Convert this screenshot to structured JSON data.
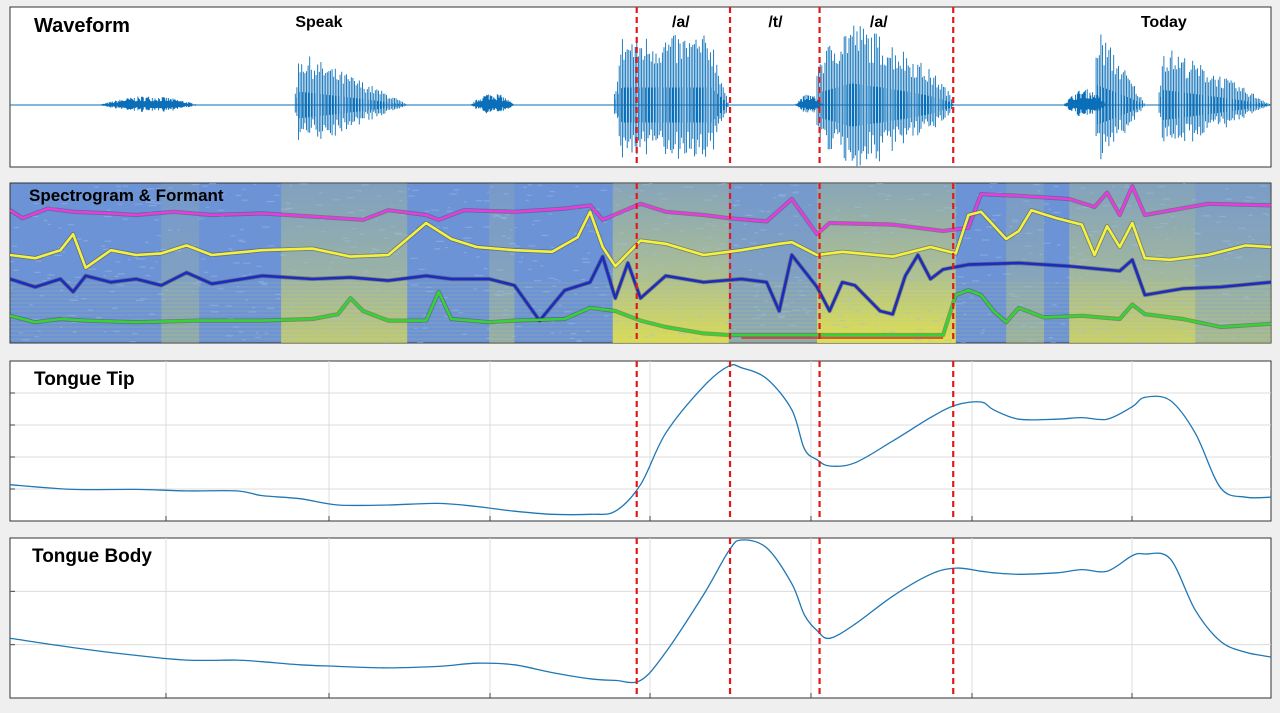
{
  "figure": {
    "waveform_title": "Waveform",
    "spectrogram_title": "Spectrogram & Formant",
    "tongue_tip_title": "Tongue Tip",
    "tongue_body_title": "Tongue Body"
  },
  "chart_data": [
    {
      "type": "line",
      "title": "Waveform",
      "word_labels": [
        {
          "text": "Speak",
          "t": 0.245
        },
        {
          "text": "/a/",
          "t": 0.532
        },
        {
          "text": "/t/",
          "t": 0.607
        },
        {
          "text": "/a/",
          "t": 0.689
        },
        {
          "text": "Today",
          "t": 0.915
        }
      ],
      "segment_boundaries": [
        0.497,
        0.571,
        0.642,
        0.748
      ],
      "bursts": [
        {
          "t0": 0.07,
          "t1": 0.15,
          "amp": 0.1,
          "shape": "noise"
        },
        {
          "t0": 0.225,
          "t1": 0.315,
          "amp": 0.62,
          "shape": "decay"
        },
        {
          "t0": 0.365,
          "t1": 0.4,
          "amp": 0.14,
          "shape": "noise"
        },
        {
          "t0": 0.478,
          "t1": 0.57,
          "amp": 0.78,
          "shape": "plateau"
        },
        {
          "t0": 0.622,
          "t1": 0.645,
          "amp": 0.12,
          "shape": "noise"
        },
        {
          "t0": 0.64,
          "t1": 0.748,
          "amp": 0.96,
          "shape": "rise-decay"
        },
        {
          "t0": 0.835,
          "t1": 0.87,
          "amp": 0.18,
          "shape": "noise"
        },
        {
          "t0": 0.86,
          "t1": 0.9,
          "amp": 0.92,
          "shape": "decay"
        },
        {
          "t0": 0.91,
          "t1": 1.0,
          "amp": 0.7,
          "shape": "decay"
        }
      ],
      "colors": {
        "signal": "#0a6fb8",
        "boundary": "#e01a1a"
      }
    },
    {
      "type": "line",
      "title": "Spectrogram & Formant",
      "y_range": [
        0,
        1
      ],
      "segment_boundaries": [
        0.497,
        0.571,
        0.642,
        0.748
      ],
      "series": [
        {
          "color": "#e83ce0",
          "t": [
            0,
            0.01,
            0.03,
            0.05,
            0.08,
            0.1,
            0.13,
            0.16,
            0.2,
            0.24,
            0.28,
            0.3,
            0.33,
            0.34,
            0.36,
            0.4,
            0.44,
            0.46,
            0.47,
            0.5,
            0.52,
            0.55,
            0.57,
            0.6,
            0.62,
            0.64,
            0.65,
            0.7,
            0.74,
            0.76,
            0.77,
            0.8,
            0.84,
            0.86,
            0.87,
            0.88,
            0.89,
            0.9,
            0.95,
            1.0
          ],
          "y": [
            0.83,
            0.78,
            0.84,
            0.82,
            0.81,
            0.8,
            0.82,
            0.8,
            0.81,
            0.79,
            0.77,
            0.83,
            0.8,
            0.77,
            0.83,
            0.82,
            0.84,
            0.86,
            0.77,
            0.87,
            0.82,
            0.8,
            0.78,
            0.76,
            0.9,
            0.68,
            0.75,
            0.74,
            0.7,
            0.72,
            0.93,
            0.92,
            0.9,
            0.85,
            0.94,
            0.8,
            0.98,
            0.8,
            0.87,
            0.86
          ]
        },
        {
          "color": "#f6f23c",
          "t": [
            0,
            0.02,
            0.04,
            0.05,
            0.06,
            0.08,
            0.1,
            0.12,
            0.14,
            0.16,
            0.2,
            0.24,
            0.27,
            0.3,
            0.33,
            0.35,
            0.37,
            0.4,
            0.43,
            0.45,
            0.46,
            0.47,
            0.48,
            0.5,
            0.52,
            0.55,
            0.58,
            0.61,
            0.62,
            0.64,
            0.66,
            0.7,
            0.73,
            0.75,
            0.76,
            0.77,
            0.79,
            0.8,
            0.81,
            0.83,
            0.85,
            0.86,
            0.87,
            0.88,
            0.89,
            0.9,
            0.92,
            0.95,
            0.98,
            1.0
          ],
          "y": [
            0.55,
            0.53,
            0.58,
            0.68,
            0.47,
            0.58,
            0.55,
            0.56,
            0.61,
            0.55,
            0.58,
            0.59,
            0.54,
            0.55,
            0.75,
            0.65,
            0.6,
            0.58,
            0.57,
            0.66,
            0.82,
            0.6,
            0.48,
            0.64,
            0.62,
            0.55,
            0.58,
            0.62,
            0.63,
            0.55,
            0.57,
            0.54,
            0.6,
            0.56,
            0.8,
            0.82,
            0.65,
            0.7,
            0.83,
            0.78,
            0.74,
            0.55,
            0.73,
            0.6,
            0.75,
            0.53,
            0.52,
            0.55,
            0.61,
            0.6
          ]
        },
        {
          "color": "#1d2bbf",
          "t": [
            0,
            0.02,
            0.04,
            0.05,
            0.06,
            0.08,
            0.1,
            0.12,
            0.14,
            0.16,
            0.2,
            0.24,
            0.27,
            0.3,
            0.33,
            0.35,
            0.38,
            0.4,
            0.42,
            0.44,
            0.46,
            0.47,
            0.48,
            0.49,
            0.5,
            0.52,
            0.55,
            0.58,
            0.6,
            0.61,
            0.62,
            0.64,
            0.65,
            0.66,
            0.67,
            0.69,
            0.7,
            0.71,
            0.72,
            0.73,
            0.74,
            0.76,
            0.8,
            0.84,
            0.88,
            0.89,
            0.9,
            0.93,
            0.96,
            1.0
          ],
          "y": [
            0.4,
            0.35,
            0.4,
            0.32,
            0.42,
            0.38,
            0.4,
            0.36,
            0.44,
            0.37,
            0.42,
            0.4,
            0.41,
            0.39,
            0.42,
            0.4,
            0.4,
            0.36,
            0.14,
            0.33,
            0.38,
            0.54,
            0.28,
            0.5,
            0.28,
            0.42,
            0.38,
            0.4,
            0.38,
            0.2,
            0.55,
            0.35,
            0.2,
            0.38,
            0.36,
            0.2,
            0.18,
            0.42,
            0.55,
            0.4,
            0.46,
            0.49,
            0.5,
            0.48,
            0.45,
            0.52,
            0.3,
            0.34,
            0.35,
            0.38
          ]
        },
        {
          "color": "#35d335",
          "t": [
            0,
            0.02,
            0.04,
            0.06,
            0.1,
            0.15,
            0.2,
            0.24,
            0.26,
            0.27,
            0.28,
            0.3,
            0.33,
            0.34,
            0.35,
            0.38,
            0.4,
            0.44,
            0.46,
            0.48,
            0.5,
            0.52,
            0.55,
            0.57,
            0.6,
            0.64,
            0.7,
            0.74,
            0.75,
            0.76,
            0.77,
            0.78,
            0.79,
            0.8,
            0.82,
            0.85,
            0.88,
            0.89,
            0.9,
            0.93,
            0.96,
            1.0
          ],
          "y": [
            0.17,
            0.13,
            0.15,
            0.14,
            0.13,
            0.14,
            0.14,
            0.15,
            0.18,
            0.28,
            0.2,
            0.14,
            0.14,
            0.32,
            0.15,
            0.13,
            0.14,
            0.15,
            0.22,
            0.2,
            0.14,
            0.1,
            0.06,
            0.05,
            0.05,
            0.05,
            0.05,
            0.05,
            0.3,
            0.33,
            0.3,
            0.2,
            0.13,
            0.22,
            0.16,
            0.17,
            0.15,
            0.24,
            0.18,
            0.15,
            0.1,
            0.12
          ]
        }
      ]
    },
    {
      "type": "line",
      "title": "Tongue Tip",
      "y_range": [
        0,
        1
      ],
      "segment_boundaries": [
        0.497,
        0.571,
        0.642,
        0.748
      ],
      "x": [
        0,
        0.05,
        0.1,
        0.14,
        0.18,
        0.2,
        0.23,
        0.26,
        0.3,
        0.34,
        0.37,
        0.4,
        0.43,
        0.46,
        0.48,
        0.5,
        0.52,
        0.55,
        0.57,
        0.58,
        0.6,
        0.62,
        0.63,
        0.64,
        0.65,
        0.67,
        0.7,
        0.73,
        0.75,
        0.77,
        0.78,
        0.8,
        0.83,
        0.85,
        0.87,
        0.89,
        0.9,
        0.92,
        0.94,
        0.96,
        0.98,
        1.0
      ],
      "y": [
        0.22,
        0.19,
        0.19,
        0.18,
        0.18,
        0.15,
        0.13,
        0.09,
        0.09,
        0.1,
        0.08,
        0.05,
        0.03,
        0.03,
        0.05,
        0.22,
        0.55,
        0.85,
        0.98,
        0.97,
        0.9,
        0.7,
        0.45,
        0.38,
        0.34,
        0.36,
        0.5,
        0.65,
        0.73,
        0.75,
        0.7,
        0.64,
        0.64,
        0.65,
        0.64,
        0.72,
        0.78,
        0.76,
        0.55,
        0.2,
        0.14,
        0.14
      ],
      "color": "#1f77b4"
    },
    {
      "type": "line",
      "title": "Tongue Body",
      "y_range": [
        0,
        1
      ],
      "segment_boundaries": [
        0.497,
        0.571,
        0.642,
        0.748
      ],
      "x": [
        0,
        0.05,
        0.1,
        0.14,
        0.18,
        0.2,
        0.23,
        0.26,
        0.3,
        0.34,
        0.37,
        0.4,
        0.43,
        0.46,
        0.48,
        0.5,
        0.52,
        0.55,
        0.57,
        0.58,
        0.6,
        0.62,
        0.63,
        0.64,
        0.65,
        0.67,
        0.7,
        0.73,
        0.75,
        0.77,
        0.78,
        0.8,
        0.83,
        0.85,
        0.87,
        0.89,
        0.9,
        0.92,
        0.94,
        0.96,
        0.98,
        1.0
      ],
      "y": [
        0.37,
        0.31,
        0.26,
        0.23,
        0.23,
        0.22,
        0.2,
        0.19,
        0.18,
        0.19,
        0.21,
        0.2,
        0.15,
        0.11,
        0.1,
        0.1,
        0.28,
        0.65,
        0.93,
        1.0,
        0.95,
        0.72,
        0.52,
        0.42,
        0.37,
        0.46,
        0.64,
        0.78,
        0.82,
        0.8,
        0.79,
        0.78,
        0.79,
        0.81,
        0.8,
        0.9,
        0.91,
        0.88,
        0.55,
        0.35,
        0.28,
        0.25
      ],
      "color": "#1f77b4"
    }
  ]
}
